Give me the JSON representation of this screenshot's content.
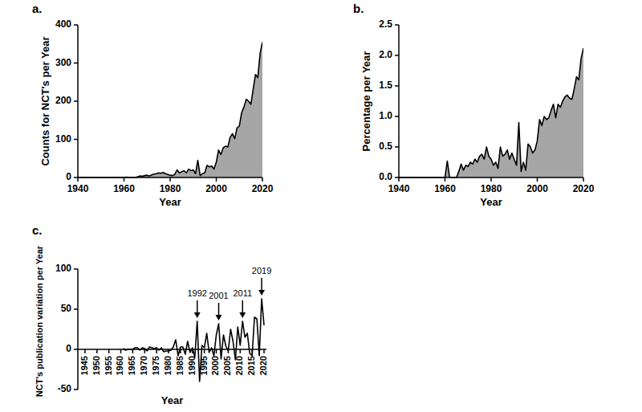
{
  "chart_data": [
    {
      "type": "area",
      "title": "a.",
      "x_label": "Year",
      "y_label": "Counts for NCT's per Year",
      "color": "#a6a6a6",
      "grid": false,
      "xlim": [
        1940,
        2020
      ],
      "xticks": [
        1940,
        1960,
        1980,
        2000,
        2020
      ],
      "ylim": [
        0,
        400
      ],
      "yticks": [
        0,
        100,
        200,
        300,
        400
      ],
      "x": [
        1940,
        1941,
        1942,
        1943,
        1944,
        1945,
        1946,
        1947,
        1948,
        1949,
        1950,
        1951,
        1952,
        1953,
        1954,
        1955,
        1956,
        1957,
        1958,
        1959,
        1960,
        1961,
        1962,
        1963,
        1964,
        1965,
        1966,
        1967,
        1968,
        1969,
        1970,
        1971,
        1972,
        1973,
        1974,
        1975,
        1976,
        1977,
        1978,
        1979,
        1980,
        1981,
        1982,
        1983,
        1984,
        1985,
        1986,
        1987,
        1988,
        1989,
        1990,
        1991,
        1992,
        1993,
        1994,
        1995,
        1996,
        1997,
        1998,
        1999,
        2000,
        2001,
        2002,
        2003,
        2004,
        2005,
        2006,
        2007,
        2008,
        2009,
        2010,
        2011,
        2012,
        2013,
        2014,
        2015,
        2016,
        2017,
        2018,
        2019,
        2020
      ],
      "values": [
        0,
        0,
        0,
        0,
        0,
        0,
        0,
        0,
        0,
        0,
        0,
        0,
        0,
        0,
        0,
        0,
        0,
        0,
        0,
        0,
        0,
        1,
        0,
        0,
        0,
        0,
        2,
        4,
        3,
        5,
        6,
        4,
        7,
        9,
        10,
        12,
        11,
        13,
        10,
        8,
        6,
        5,
        8,
        20,
        12,
        15,
        18,
        12,
        22,
        18,
        20,
        10,
        45,
        5,
        10,
        12,
        32,
        28,
        30,
        22,
        40,
        72,
        60,
        78,
        82,
        80,
        105,
        115,
        102,
        130,
        135,
        170,
        185,
        205,
        200,
        192,
        232,
        270,
        262,
        325,
        355
      ]
    },
    {
      "type": "area",
      "title": "b.",
      "x_label": "Year",
      "y_label": "Percentage per Year",
      "color": "#a6a6a6",
      "grid": false,
      "xlim": [
        1940,
        2020
      ],
      "xticks": [
        1940,
        1960,
        1980,
        2000,
        2020
      ],
      "ylim": [
        0,
        2.5
      ],
      "yticks": [
        {
          "value": 0,
          "label": "0.0"
        },
        0.5,
        {
          "value": 1,
          "label": "1.0"
        },
        1.5,
        {
          "value": 2,
          "label": "2.0"
        },
        2.5
      ],
      "x": [
        1940,
        1941,
        1942,
        1943,
        1944,
        1945,
        1946,
        1947,
        1948,
        1949,
        1950,
        1951,
        1952,
        1953,
        1954,
        1955,
        1956,
        1957,
        1958,
        1959,
        1960,
        1961,
        1962,
        1963,
        1964,
        1965,
        1966,
        1967,
        1968,
        1969,
        1970,
        1971,
        1972,
        1973,
        1974,
        1975,
        1976,
        1977,
        1978,
        1979,
        1980,
        1981,
        1982,
        1983,
        1984,
        1985,
        1986,
        1987,
        1988,
        1989,
        1990,
        1991,
        1992,
        1993,
        1994,
        1995,
        1996,
        1997,
        1998,
        1999,
        2000,
        2001,
        2002,
        2003,
        2004,
        2005,
        2006,
        2007,
        2008,
        2009,
        2010,
        2011,
        2012,
        2013,
        2014,
        2015,
        2016,
        2017,
        2018,
        2019,
        2020
      ],
      "values": [
        0,
        0,
        0,
        0,
        0,
        0,
        0,
        0,
        0,
        0,
        0,
        0,
        0,
        0,
        0,
        0,
        0,
        0,
        0,
        0,
        0,
        0.27,
        0,
        0,
        0,
        0,
        0.1,
        0.22,
        0.12,
        0.2,
        0.18,
        0.25,
        0.22,
        0.3,
        0.25,
        0.35,
        0.38,
        0.3,
        0.5,
        0.35,
        0.3,
        0.2,
        0.25,
        0.15,
        0.5,
        0.35,
        0.38,
        0.45,
        0.3,
        0.4,
        0.3,
        0.2,
        0.9,
        0.1,
        0.25,
        0.12,
        0.55,
        0.5,
        0.4,
        0.45,
        0.6,
        0.95,
        0.85,
        1.0,
        0.95,
        0.98,
        1.1,
        1.2,
        0.98,
        1.2,
        1.15,
        1.25,
        1.32,
        1.35,
        1.3,
        1.28,
        1.45,
        1.65,
        1.6,
        1.95,
        2.12
      ]
    },
    {
      "type": "line",
      "title": "c.",
      "x_label": "Year",
      "y_label": "NCT's publication variation per Year",
      "color": "#000000",
      "grid": false,
      "xlim": [
        1942,
        2021
      ],
      "xticks": [
        1945,
        1950,
        1955,
        1960,
        1965,
        1970,
        1975,
        1980,
        1985,
        1990,
        1995,
        2000,
        2005,
        2010,
        2015,
        2020
      ],
      "ylim": [
        -50,
        100
      ],
      "yticks": [
        -50,
        0,
        50,
        100
      ],
      "x": [
        1961,
        1962,
        1963,
        1964,
        1965,
        1966,
        1967,
        1968,
        1969,
        1970,
        1971,
        1972,
        1973,
        1974,
        1975,
        1976,
        1977,
        1978,
        1979,
        1980,
        1981,
        1982,
        1983,
        1984,
        1985,
        1986,
        1987,
        1988,
        1989,
        1990,
        1991,
        1992,
        1993,
        1994,
        1995,
        1996,
        1997,
        1998,
        1999,
        2000,
        2001,
        2002,
        2003,
        2004,
        2005,
        2006,
        2007,
        2008,
        2009,
        2010,
        2011,
        2012,
        2013,
        2014,
        2015,
        2016,
        2017,
        2018,
        2019,
        2020
      ],
      "values": [
        1,
        -1,
        0,
        0,
        0,
        2,
        2,
        -1,
        2,
        1,
        -2,
        3,
        2,
        1,
        2,
        -1,
        2,
        -3,
        -2,
        -2,
        -1,
        3,
        12,
        -8,
        3,
        3,
        -6,
        10,
        -4,
        2,
        -10,
        35,
        -40,
        5,
        2,
        20,
        -4,
        2,
        -8,
        18,
        32,
        -12,
        18,
        4,
        -2,
        25,
        10,
        -13,
        28,
        5,
        35,
        15,
        20,
        -5,
        -8,
        40,
        38,
        -8,
        63,
        30
      ],
      "annotations": [
        {
          "x": 1992,
          "text": "1992"
        },
        {
          "x": 2001,
          "text": "2001"
        },
        {
          "x": 2011,
          "text": "2011"
        },
        {
          "x": 2019,
          "text": "2019"
        }
      ]
    }
  ]
}
